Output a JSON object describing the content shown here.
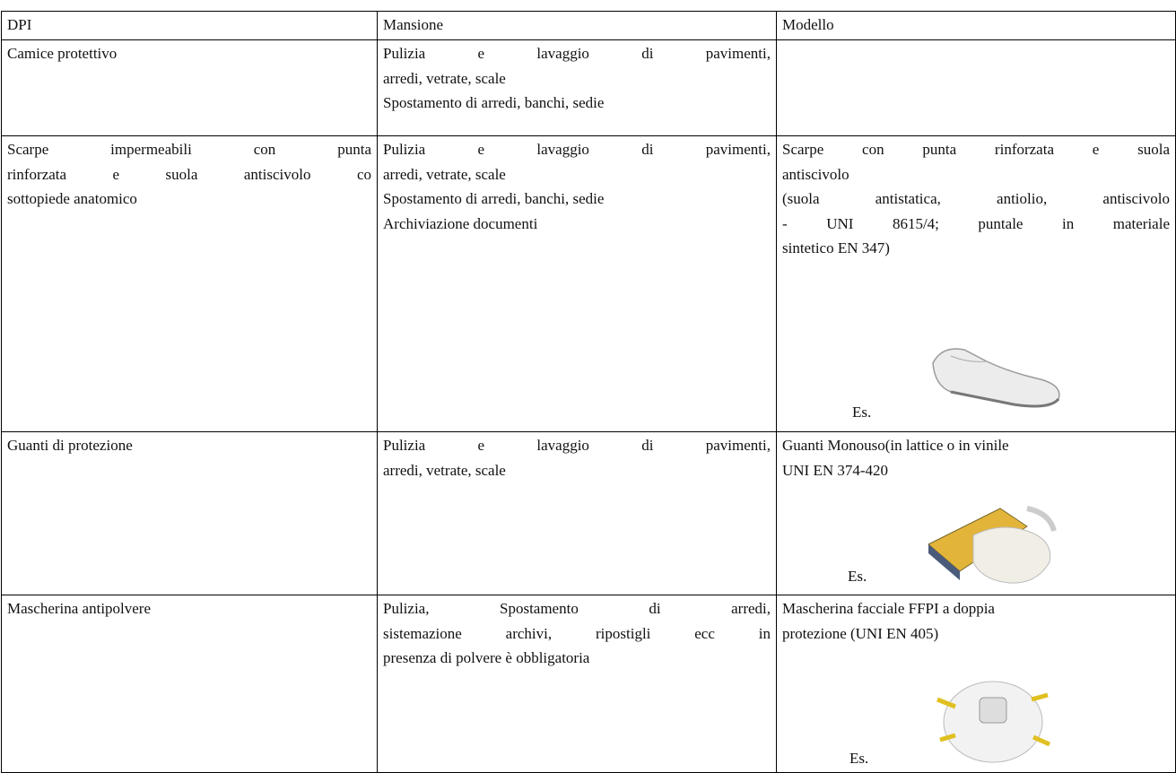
{
  "table": {
    "header": [
      "DPI",
      "Mansione",
      "Modello"
    ],
    "rows": [
      {
        "dpi": [
          "Camice protettivo"
        ],
        "mansione": [
          "Pulizia e lavaggio di pavimenti,",
          "arredi, vetrate, scale",
          "Spostamento di arredi, banchi, sedie"
        ],
        "modello": []
      },
      {
        "dpi": [
          "Scarpe impermeabili con punta",
          "rinforzata e suola antiscivolo co",
          "sottopiede anatomico"
        ],
        "mansione": [
          "Pulizia e lavaggio di pavimenti,",
          "arredi, vetrate, scale",
          "Spostamento di arredi, banchi, sedie",
          "Archiviazione documenti"
        ],
        "modello": [
          "Scarpe con punta rinforzata e suola",
          "antiscivolo",
          "(suola antistatica, antiolio, antiscivolo",
          "- UNI 8615/4; puntale in materiale",
          "sintetico EN 347)"
        ],
        "example": "Es."
      },
      {
        "dpi": [
          "Guanti di protezione"
        ],
        "mansione": [
          "Pulizia e lavaggio di pavimenti,",
          "arredi, vetrate, scale"
        ],
        "modello": [
          "Guanti Monouso(in lattice o in vinile",
          "UNI EN 374-420"
        ],
        "example": "Es."
      },
      {
        "dpi": [
          "Mascherina antipolvere"
        ],
        "mansione": [
          "Pulizia, Spostamento di arredi,",
          "sistemazione archivi, ripostigli ecc in",
          "presenza di polvere è obbligatoria"
        ],
        "modello": [
          "Mascherina facciale FFPI a doppia",
          "protezione (UNI EN 405)"
        ],
        "example": "Es."
      }
    ]
  }
}
